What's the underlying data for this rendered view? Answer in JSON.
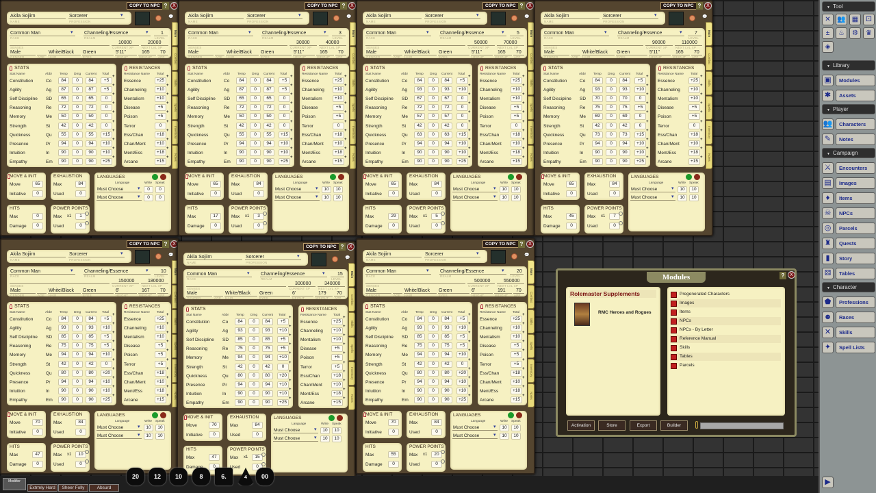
{
  "icons": {
    "help": "?",
    "close": "X",
    "add": "+",
    "delete": "/",
    "chat": "💬",
    "pin": "pin-icon",
    "dropdown": "▾"
  },
  "labels": {
    "copy_to_npc": "COPY TO NPC",
    "name": "NAME",
    "profession": "PROFESSION",
    "race": "RACE",
    "realm": "REALM",
    "level": "LEVEL",
    "senses": "SENSES",
    "current_xp": "CURRENT XP",
    "next_lvl_xp": "NEXT LVL XP",
    "gender": "GENDER",
    "age": "AGE",
    "hair": "HAIR",
    "eyes": "EYES",
    "height": "HEIGHT",
    "weight": "WEIGHT",
    "app": "APP",
    "stats": "STATS",
    "stat_name": "Stat Name",
    "abbr": "Abbr",
    "temp": "Temp",
    "dmg": "Dmg",
    "current": "Current",
    "total": "Total",
    "resistances": "RESISTANCES",
    "resistance_name": "Resistance Name",
    "move_init": "MOVE & INIT",
    "move": "Move",
    "initiative": "Initiative",
    "exhaustion": "EXHAUSTION",
    "max": "Max",
    "used": "Used",
    "hits": "HITS",
    "damage": "Damage",
    "power_points": "POWER POINTS",
    "pp_mult": "x1",
    "languages": "LANGUAGES",
    "language": "Language",
    "write": "Write",
    "speak": "Speak",
    "stat_names": [
      "Constitution",
      "Agility",
      "Self Discipline",
      "Reasoning",
      "Memory",
      "Strength",
      "Quickness",
      "Presence",
      "Intuition",
      "Empathy"
    ],
    "stat_abbrs": [
      "Co",
      "Ag",
      "SD",
      "Re",
      "Me",
      "St",
      "Qu",
      "Pr",
      "In",
      "Em"
    ],
    "resistance_names": [
      "Essence",
      "Channeling",
      "Mentalism",
      "Disease",
      "Poison",
      "Terror",
      "Ess/Chan",
      "Chan/Ment",
      "Ment/Ess",
      "Arcane"
    ],
    "tabs": [
      "Main",
      "Combat",
      "Skills",
      "Spells",
      "Inventory",
      "Notes"
    ]
  },
  "sheets": [
    {
      "name": "Akila Sojiirn",
      "profession": "Sorcerer",
      "race": "Common Man",
      "realm": "Channeling/Essence",
      "level": "1",
      "current_xp": "10000",
      "next_xp": "20000",
      "gender": "Male",
      "age": "",
      "hair": "White/Black",
      "eyes": "Green",
      "height": "5'11\"",
      "weight": "165",
      "app": "70",
      "temp": [
        84,
        87,
        65,
        72,
        50,
        42,
        55,
        94,
        90,
        90
      ],
      "dmg": [
        0,
        0,
        0,
        0,
        0,
        0,
        0,
        0,
        0,
        0
      ],
      "current": [
        84,
        87,
        65,
        72,
        50,
        42,
        55,
        94,
        90,
        90
      ],
      "total": [
        "+5",
        "+5",
        "0",
        "0",
        "0",
        "0",
        "+15",
        "+10",
        "+10",
        "+25"
      ],
      "res": [
        "+25",
        "+10",
        "+10",
        "+5",
        "+5",
        "0",
        "+18",
        "+10",
        "+18",
        "+15"
      ],
      "move": "65",
      "initiative": "0",
      "exh_max": "84",
      "exh_used": "0",
      "hits_max": "0",
      "damage": "0",
      "pp_max": "1",
      "pp_used": "0",
      "languages": [
        {
          "name": "Must Choose",
          "write": "0",
          "speak": "0"
        },
        {
          "name": "Must Choose",
          "write": "0",
          "speak": "0"
        }
      ]
    },
    {
      "name": "Akila Sojiirn",
      "profession": "Sorcerer",
      "race": "Common Man",
      "realm": "Channeling/Essence",
      "level": "3",
      "current_xp": "30000",
      "next_xp": "40000",
      "gender": "Male",
      "age": "",
      "hair": "White/Black",
      "eyes": "Green",
      "height": "5'11\"",
      "weight": "165",
      "app": "70",
      "temp": [
        84,
        87,
        65,
        72,
        50,
        42,
        55,
        94,
        90,
        90
      ],
      "dmg": [
        0,
        0,
        0,
        0,
        0,
        0,
        0,
        0,
        0,
        0
      ],
      "current": [
        84,
        87,
        65,
        72,
        50,
        42,
        55,
        94,
        90,
        90
      ],
      "total": [
        "+5",
        "+5",
        "0",
        "0",
        "0",
        "0",
        "+15",
        "+10",
        "+10",
        "+25"
      ],
      "res": [
        "+25",
        "+10",
        "+10",
        "+5",
        "+5",
        "0",
        "+18",
        "+10",
        "+18",
        "+15"
      ],
      "move": "65",
      "initiative": "0",
      "exh_max": "84",
      "exh_used": "0",
      "hits_max": "17",
      "damage": "0",
      "pp_max": "3",
      "pp_used": "0",
      "languages": [
        {
          "name": "Must Choose",
          "write": "10",
          "speak": "10"
        },
        {
          "name": "Must Choose",
          "write": "10",
          "speak": "10"
        }
      ]
    },
    {
      "name": "Akila Sojiirn",
      "profession": "Sorcerer",
      "race": "Common Man",
      "realm": "Channeling/Essence",
      "level": "5",
      "current_xp": "50000",
      "next_xp": "70000",
      "gender": "Male",
      "age": "",
      "hair": "White/Black",
      "eyes": "Green",
      "height": "5'11\"",
      "weight": "165",
      "app": "70",
      "temp": [
        84,
        93,
        67,
        72,
        57,
        42,
        63,
        94,
        90,
        90
      ],
      "dmg": [
        0,
        0,
        0,
        0,
        0,
        0,
        0,
        0,
        0,
        0
      ],
      "current": [
        84,
        93,
        67,
        72,
        57,
        42,
        63,
        94,
        90,
        90
      ],
      "total": [
        "+5",
        "+10",
        "0",
        "0",
        "0",
        "0",
        "+15",
        "+10",
        "+10",
        "+25"
      ],
      "res": [
        "+25",
        "+10",
        "+10",
        "+5",
        "+5",
        "0",
        "+18",
        "+10",
        "+18",
        "+15"
      ],
      "move": "65",
      "initiative": "0",
      "exh_max": "84",
      "exh_used": "0",
      "hits_max": "29",
      "damage": "0",
      "pp_max": "5",
      "pp_used": "0",
      "languages": [
        {
          "name": "Must Choose",
          "write": "10",
          "speak": "10"
        },
        {
          "name": "Must Choose",
          "write": "10",
          "speak": "10"
        }
      ]
    },
    {
      "name": "Akila Sojiirn",
      "profession": "Sorcerer",
      "race": "Common Man",
      "realm": "Channeling/Essence",
      "level": "7",
      "current_xp": "90000",
      "next_xp": "110000",
      "gender": "Male",
      "age": "",
      "hair": "White/Black",
      "eyes": "Green",
      "height": "5'11\"",
      "weight": "165",
      "app": "70",
      "temp": [
        84,
        93,
        70,
        75,
        69,
        42,
        73,
        94,
        90,
        90
      ],
      "dmg": [
        0,
        0,
        0,
        0,
        0,
        0,
        0,
        0,
        0,
        0
      ],
      "current": [
        84,
        93,
        70,
        75,
        69,
        42,
        73,
        94,
        90,
        90
      ],
      "total": [
        "+5",
        "+10",
        "0",
        "+5",
        "0",
        "0",
        "+15",
        "+10",
        "+10",
        "+25"
      ],
      "res": [
        "+25",
        "+10",
        "+10",
        "+5",
        "+5",
        "0",
        "+18",
        "+10",
        "+18",
        "+15"
      ],
      "move": "65",
      "initiative": "0",
      "exh_max": "84",
      "exh_used": "0",
      "hits_max": "45",
      "damage": "0",
      "pp_max": "7",
      "pp_used": "0",
      "languages": [
        {
          "name": "Must Choose",
          "write": "10",
          "speak": "10"
        },
        {
          "name": "Must Choose",
          "write": "10",
          "speak": "10"
        }
      ]
    },
    {
      "name": "Akila Sojiirn",
      "profession": "Sorcerer",
      "race": "Common Man",
      "realm": "Channeling/Essence",
      "level": "10",
      "current_xp": "150000",
      "next_xp": "180000",
      "gender": "Male",
      "age": "",
      "hair": "White/Black",
      "eyes": "Green",
      "height": "6'",
      "weight": "167",
      "app": "70",
      "temp": [
        84,
        93,
        85,
        75,
        94,
        42,
        80,
        94,
        90,
        90
      ],
      "dmg": [
        0,
        0,
        0,
        0,
        0,
        0,
        0,
        0,
        0,
        0
      ],
      "current": [
        84,
        93,
        85,
        75,
        94,
        42,
        80,
        94,
        90,
        90
      ],
      "total": [
        "+5",
        "+10",
        "+5",
        "+5",
        "+10",
        "0",
        "+20",
        "+10",
        "+10",
        "+25"
      ],
      "res": [
        "+25",
        "+10",
        "+10",
        "+5",
        "+5",
        "+5",
        "+18",
        "+10",
        "+18",
        "+15"
      ],
      "move": "70",
      "initiative": "0",
      "exh_max": "84",
      "exh_used": "0",
      "hits_max": "47",
      "damage": "0",
      "pp_max": "10",
      "pp_used": "0",
      "languages": [
        {
          "name": "Must Choose",
          "write": "10",
          "speak": "10"
        },
        {
          "name": "Must Choose",
          "write": "10",
          "speak": "10"
        }
      ]
    },
    {
      "name": "Akila Sojiirn",
      "profession": "Sorcerer",
      "race": "Common Man",
      "realm": "Channeling/Essence",
      "level": "15",
      "current_xp": "300000",
      "next_xp": "340000",
      "gender": "Male",
      "age": "",
      "hair": "White/Black",
      "eyes": "Green",
      "height": "6'",
      "weight": "179",
      "app": "70",
      "temp": [
        84,
        93,
        85,
        75,
        94,
        42,
        80,
        94,
        90,
        90
      ],
      "dmg": [
        0,
        0,
        0,
        0,
        0,
        0,
        0,
        0,
        0,
        0
      ],
      "current": [
        84,
        93,
        85,
        75,
        94,
        42,
        80,
        94,
        90,
        90
      ],
      "total": [
        "+5",
        "+10",
        "+5",
        "+5",
        "+10",
        "0",
        "+20",
        "+10",
        "+10",
        "+25"
      ],
      "res": [
        "+25",
        "+10",
        "+10",
        "+5",
        "+5",
        "+5",
        "+18",
        "+10",
        "+18",
        "+15"
      ],
      "move": "70",
      "initiative": "0",
      "exh_max": "84",
      "exh_used": "0",
      "hits_max": "47",
      "damage": "0",
      "pp_max": "15",
      "pp_used": "0",
      "languages": [
        {
          "name": "Must Choose",
          "write": "10",
          "speak": "10"
        },
        {
          "name": "Must Choose",
          "write": "10",
          "speak": "10"
        }
      ]
    },
    {
      "name": "Akila Sojiirn",
      "profession": "Sorcerer",
      "race": "Common Man",
      "realm": "Channeling/Essence",
      "level": "20",
      "current_xp": "500000",
      "next_xp": "550000",
      "gender": "Male",
      "age": "",
      "hair": "White/Black",
      "eyes": "Green",
      "height": "6'",
      "weight": "191",
      "app": "70",
      "temp": [
        84,
        93,
        85,
        75,
        94,
        42,
        80,
        94,
        90,
        90
      ],
      "dmg": [
        0,
        0,
        0,
        0,
        0,
        0,
        0,
        0,
        0,
        0
      ],
      "current": [
        84,
        93,
        85,
        75,
        94,
        42,
        80,
        94,
        90,
        90
      ],
      "total": [
        "+5",
        "+10",
        "+5",
        "+5",
        "+10",
        "0",
        "+20",
        "+10",
        "+10",
        "+25"
      ],
      "res": [
        "+25",
        "+10",
        "+10",
        "+5",
        "+5",
        "+5",
        "+18",
        "+10",
        "+18",
        "+15"
      ],
      "move": "70",
      "initiative": "0",
      "exh_max": "84",
      "exh_used": "0",
      "hits_max": "55",
      "damage": "0",
      "pp_max": "20",
      "pp_used": "0",
      "languages": [
        {
          "name": "Must Choose",
          "write": "10",
          "speak": "10"
        },
        {
          "name": "Must Choose",
          "write": "10",
          "speak": "10"
        }
      ]
    }
  ],
  "modules": {
    "title": "Modules",
    "category": "Rolemaster Supplements",
    "module_name": "RMC Heroes and Rogues",
    "items": [
      "Pregenerated Characters",
      "Images",
      "Items",
      "NPCs",
      "NPCs - By Letter",
      "Reference Manual",
      "Skills",
      "Tables",
      "Parcels"
    ],
    "buttons": {
      "activation": "Activation",
      "store": "Store",
      "export": "Export",
      "builder": "Builder"
    },
    "search_value": ""
  },
  "sidebar": {
    "tool_header": "Tool",
    "tool_icons": [
      "crossed-swords",
      "users",
      "calendar",
      "dice",
      "plus-minus",
      "potion",
      "gear",
      "crown",
      "compass"
    ],
    "sections": [
      {
        "header": "Library",
        "items": [
          {
            "label": "Modules",
            "icon": "▣"
          },
          {
            "label": "Assets",
            "icon": "✱"
          }
        ]
      },
      {
        "header": "Player",
        "items": [
          {
            "label": "Characters",
            "icon": "👥"
          },
          {
            "label": "Notes",
            "icon": "✎"
          }
        ]
      },
      {
        "header": "Campaign",
        "items": [
          {
            "label": "Encounters",
            "icon": "⚔"
          },
          {
            "label": "Images",
            "icon": "▤"
          },
          {
            "label": "Items",
            "icon": "♦"
          },
          {
            "label": "NPCs",
            "icon": "☠"
          },
          {
            "label": "Parcels",
            "icon": "◎"
          },
          {
            "label": "Quests",
            "icon": "♜"
          },
          {
            "label": "Story",
            "icon": "▮"
          },
          {
            "label": "Tables",
            "icon": "⚄"
          }
        ]
      },
      {
        "header": "Character",
        "items": [
          {
            "label": "Professions",
            "icon": "⬟"
          },
          {
            "label": "Races",
            "icon": "☻"
          },
          {
            "label": "Skills",
            "icon": "✕"
          },
          {
            "label": "Spell Lists",
            "icon": "✦"
          }
        ]
      }
    ],
    "collapse_arrow": "▼",
    "play_icon": "▶"
  },
  "bottom": {
    "modifier_label": "Modifier",
    "difficulty": [
      "Extrmly Hard",
      "Sheer Folly",
      "Absurd"
    ],
    "dice": [
      "20",
      "12",
      "10",
      "8",
      "6.",
      "4",
      "00"
    ]
  }
}
